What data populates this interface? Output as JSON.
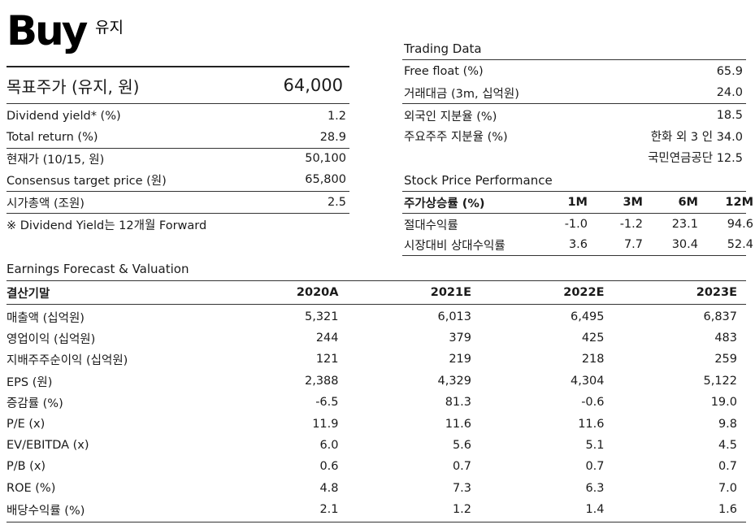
{
  "header": {
    "rating": "Buy",
    "rating_sub": "유지"
  },
  "target": {
    "label": "목표주가 (유지, 원)",
    "value": "64,000"
  },
  "left_rows": [
    {
      "label": "Dividend yield* (%)",
      "value": "1.2"
    },
    {
      "label": "Total return (%)",
      "value": "28.9"
    },
    {
      "label": "현재가 (10/15, 원)",
      "value": "50,100"
    },
    {
      "label": "Consensus target price (원)",
      "value": "65,800"
    },
    {
      "label": "시가총액 (조원)",
      "value": "2.5"
    }
  ],
  "footnote": "※ Dividend Yield는 12개월 Forward",
  "trading": {
    "title": "Trading Data",
    "rows": [
      {
        "label": "Free float (%)",
        "value": "65.9"
      },
      {
        "label": "거래대금 (3m, 십억원)",
        "value": "24.0"
      },
      {
        "label": "외국인 지분율 (%)",
        "value": "18.5"
      },
      {
        "label": "주요주주 지분율 (%)",
        "value": "한화 외 3 인 34.0"
      },
      {
        "label": "",
        "value": "국민연금공단 12.5"
      }
    ]
  },
  "performance": {
    "title": "Stock Price Performance",
    "header": {
      "label": "주가상승률  (%)",
      "cols": [
        "1M",
        "3M",
        "6M",
        "12M"
      ]
    },
    "rows": [
      {
        "label": "절대수익률",
        "values": [
          "-1.0",
          "-1.2",
          "23.1",
          "94.6"
        ]
      },
      {
        "label": "시장대비 상대수익률",
        "values": [
          "3.6",
          "7.7",
          "30.4",
          "52.4"
        ]
      }
    ]
  },
  "earnings": {
    "title": "Earnings Forecast & Valuation",
    "header": {
      "label": "결산기말",
      "cols": [
        "2020A",
        "2021E",
        "2022E",
        "2023E"
      ]
    },
    "rows": [
      {
        "label": "매출액 (십억원)",
        "values": [
          "5,321",
          "6,013",
          "6,495",
          "6,837"
        ]
      },
      {
        "label": "영업이익 (십억원)",
        "values": [
          "244",
          "379",
          "425",
          "483"
        ]
      },
      {
        "label": "지배주주순이익 (십억원)",
        "values": [
          "121",
          "219",
          "218",
          "259"
        ]
      },
      {
        "label": "EPS (원)",
        "values": [
          "2,388",
          "4,329",
          "4,304",
          "5,122"
        ]
      },
      {
        "label": "증감률 (%)",
        "values": [
          "-6.5",
          "81.3",
          "-0.6",
          "19.0"
        ]
      },
      {
        "label": "P/E (x)",
        "values": [
          "11.9",
          "11.6",
          "11.6",
          "9.8"
        ]
      },
      {
        "label": "EV/EBITDA (x)",
        "values": [
          "6.0",
          "5.6",
          "5.1",
          "4.5"
        ]
      },
      {
        "label": "P/B (x)",
        "values": [
          "0.6",
          "0.7",
          "0.7",
          "0.7"
        ]
      },
      {
        "label": "ROE (%)",
        "values": [
          "4.8",
          "7.3",
          "6.3",
          "7.0"
        ]
      },
      {
        "label": "배당수익률 (%)",
        "values": [
          "2.1",
          "1.2",
          "1.4",
          "1.6"
        ]
      }
    ]
  }
}
